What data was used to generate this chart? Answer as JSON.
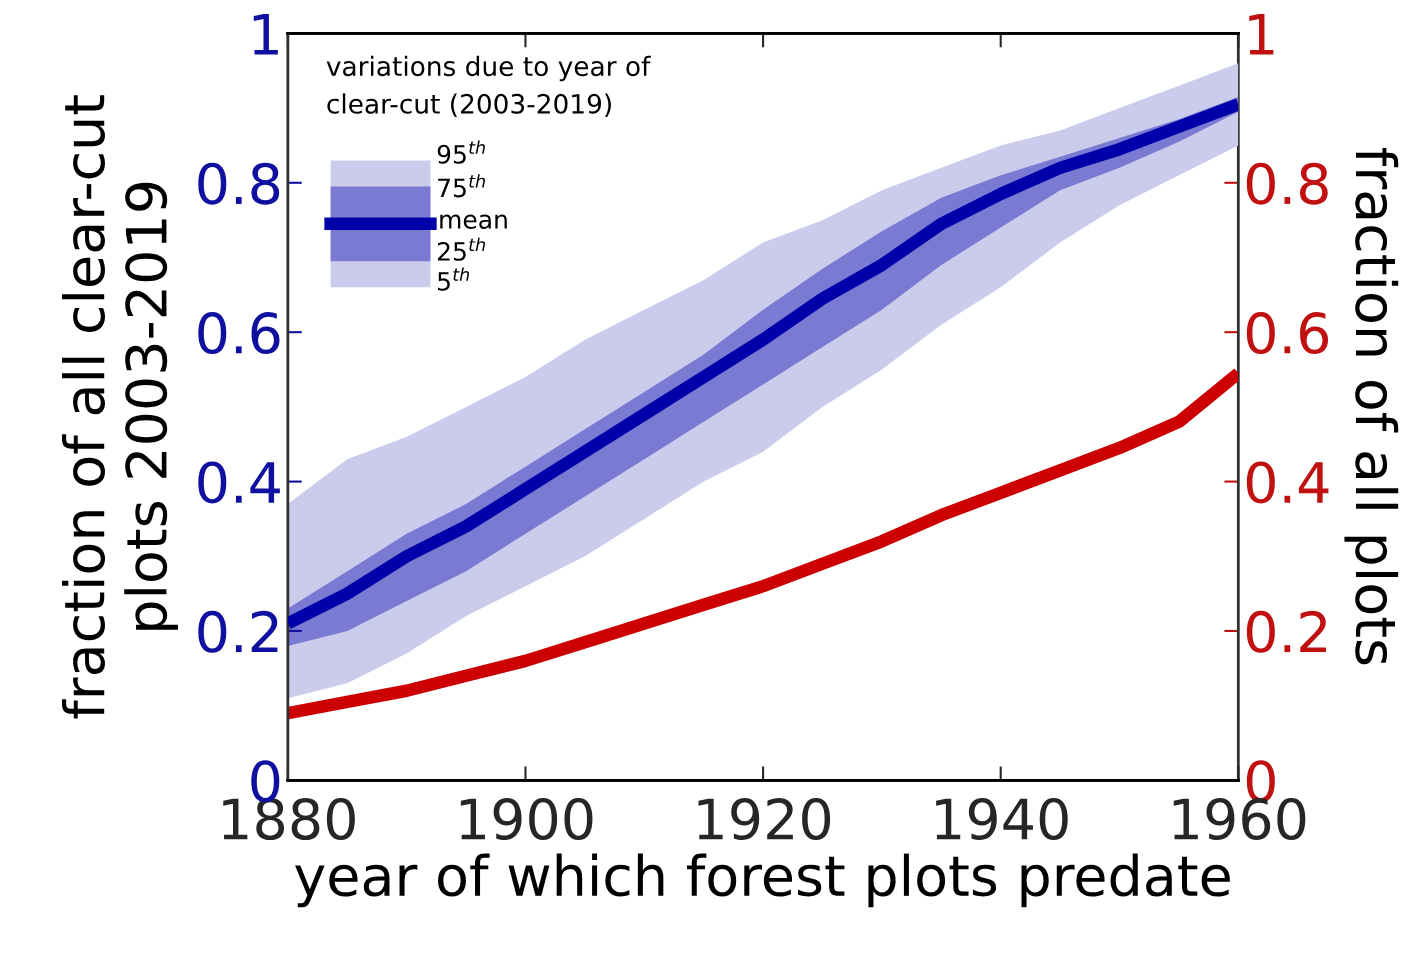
{
  "chart_data": {
    "type": "line",
    "x": [
      1880,
      1885,
      1890,
      1895,
      1900,
      1905,
      1910,
      1915,
      1920,
      1925,
      1930,
      1935,
      1940,
      1945,
      1950,
      1955,
      1960
    ],
    "xlabel": "year of which forest plots predate",
    "ylabel": "fraction of all clear-cut\nplots 2003-2019",
    "y2label": "fraction of all plots",
    "legend_title": "variations due to year of\nclear-cut (2003-2019)",
    "annotations": [
      "95$^{th}$",
      "75$^{th}$",
      "25$^{th}$",
      "5$^{th}$"
    ],
    "series": [
      {
        "color": "#cbcbec",
        "values": [
          null,
          null,
          null,
          null,
          null,
          null,
          null,
          null,
          null,
          null,
          null,
          null,
          null,
          null,
          null,
          null,
          null
        ],
        "upper": [
          0.37,
          0.43,
          0.46,
          0.5,
          0.54,
          0.59,
          0.63,
          0.67,
          0.72,
          0.75,
          0.79,
          0.82,
          0.85,
          0.87,
          0.9,
          0.93,
          0.96
        ],
        "lower": [
          0.11,
          0.13,
          0.17,
          0.22,
          0.26,
          0.3,
          0.35,
          0.4,
          0.44,
          0.5,
          0.55,
          0.61,
          0.66,
          0.72,
          0.77,
          0.81,
          0.85
        ]
      },
      {
        "name": "mean",
        "color": "#0000aa",
        "values": [
          0.21,
          0.25,
          0.3,
          0.34,
          0.39,
          0.44,
          0.49,
          0.54,
          0.59,
          0.645,
          0.69,
          0.745,
          0.785,
          0.82,
          0.845,
          0.875,
          0.905
        ],
        "upper": [
          0.23,
          0.28,
          0.33,
          0.37,
          0.42,
          0.47,
          0.52,
          0.57,
          0.63,
          0.685,
          0.735,
          0.78,
          0.81,
          0.835,
          0.86,
          0.885,
          0.915
        ],
        "lower": [
          0.18,
          0.2,
          0.24,
          0.28,
          0.33,
          0.38,
          0.43,
          0.48,
          0.53,
          0.58,
          0.63,
          0.69,
          0.74,
          0.79,
          0.82,
          0.855,
          0.895
        ]
      },
      {
        "axis": "y2",
        "color": "#cc0000",
        "values": [
          0.09,
          0.105,
          0.12,
          0.14,
          0.16,
          0.185,
          0.21,
          0.235,
          0.26,
          0.29,
          0.32,
          0.355,
          0.385,
          0.415,
          0.445,
          0.48,
          0.545
        ]
      }
    ],
    "xlim": [
      1880,
      1960
    ],
    "xticks": [
      1880,
      1900,
      1920,
      1940,
      1960
    ],
    "ylim": [
      0,
      1
    ],
    "yticks": [
      0,
      0.2,
      0.4,
      0.6,
      0.8,
      1
    ],
    "y2lim": [
      0,
      1
    ],
    "y2ticks": [
      0,
      0.2,
      0.4,
      0.6,
      0.8,
      1
    ],
    "grid": false,
    "legend": "top left"
  }
}
